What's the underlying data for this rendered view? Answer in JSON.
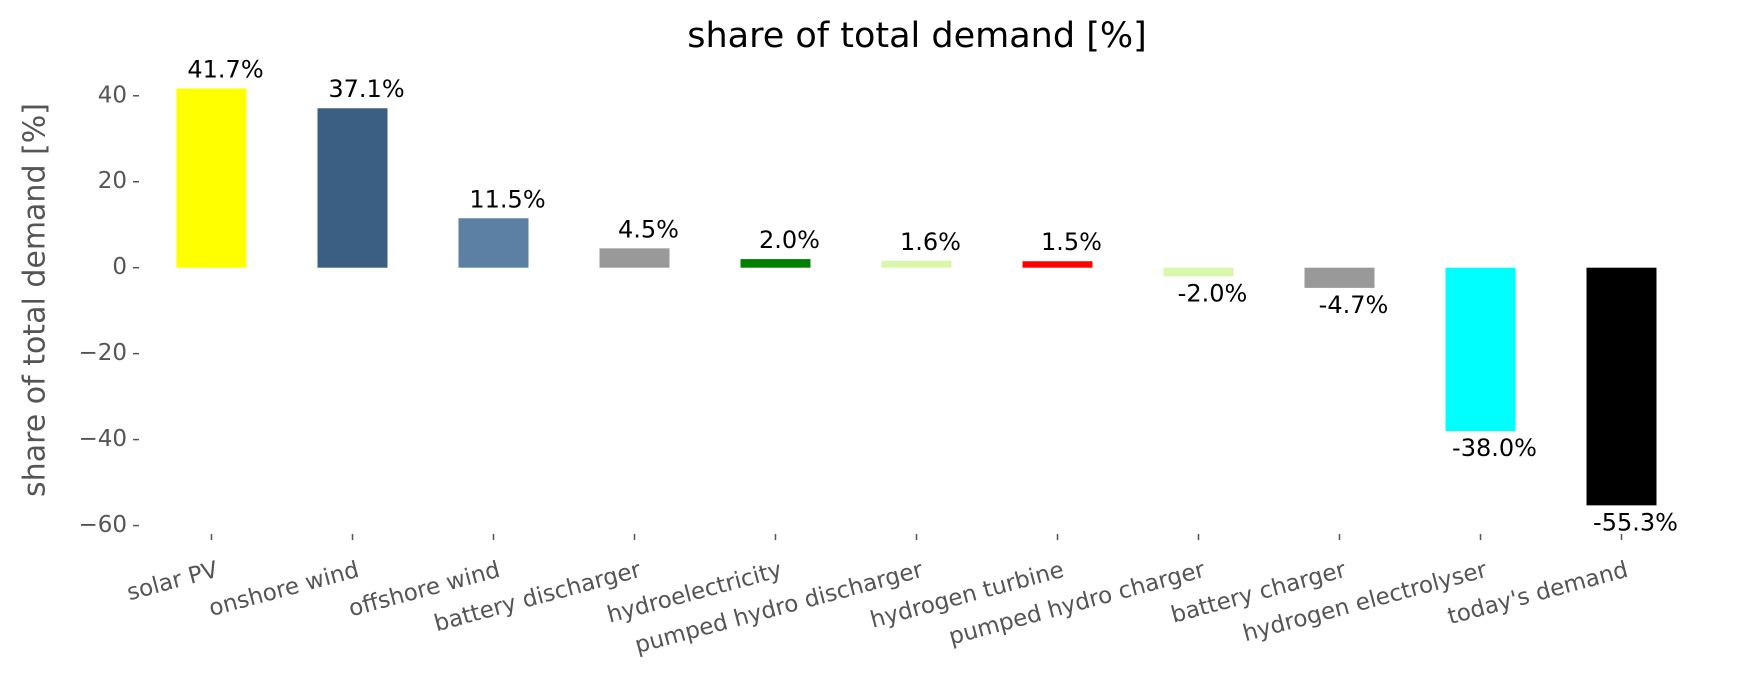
{
  "chart_data": {
    "type": "bar",
    "title": "share of total demand [%]",
    "y_label": "share of total demand [%]",
    "categories": [
      "solar PV",
      "onshore wind",
      "offshore wind",
      "battery discharger",
      "hydroelectricity",
      "pumped hydro discharger",
      "hydrogen turbine",
      "pumped hydro charger",
      "battery charger",
      "hydrogen electrolyser",
      "today's demand"
    ],
    "values": [
      41.7,
      37.1,
      11.5,
      4.5,
      2.0,
      1.6,
      1.5,
      -2.0,
      -4.7,
      -38.0,
      -55.3
    ],
    "value_labels": [
      "41.7%",
      "37.1%",
      "11.5%",
      "4.5%",
      "2.0%",
      "1.6%",
      "1.5%",
      "-2.0%",
      "-4.7%",
      "-38.0%",
      "-55.3%"
    ],
    "colors": [
      "#ffff00",
      "#3a5f82",
      "#5b80a3",
      "#999999",
      "#008000",
      "#d8f7a8",
      "#ff0000",
      "#d8f7a8",
      "#999999",
      "#00ffff",
      "#000000"
    ],
    "ylim": [
      -61.5,
      46
    ],
    "yticks": [
      {
        "value": -60,
        "label": "−60"
      },
      {
        "value": -40,
        "label": "−40"
      },
      {
        "value": -20,
        "label": "−20"
      },
      0,
      20,
      40
    ]
  }
}
